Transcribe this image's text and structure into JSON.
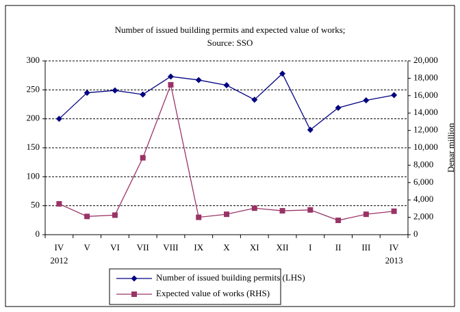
{
  "chart_data": {
    "type": "line",
    "title": "Number of issued building permits and expected value of works;",
    "subtitle": "Source: SSO",
    "categories": [
      "IV",
      "V",
      "VI",
      "VII",
      "VIII",
      "IX",
      "X",
      "XI",
      "XII",
      "I",
      "II",
      "III",
      "IV"
    ],
    "year_labels": [
      "2012",
      "2013"
    ],
    "y2_label": "Denar million",
    "ylim": [
      0,
      300
    ],
    "yticks": [
      0,
      50,
      100,
      150,
      200,
      250,
      300
    ],
    "y2lim": [
      0,
      20000
    ],
    "y2ticks": [
      0,
      {
        "value": 2000,
        "label": "2,000"
      },
      {
        "value": 4000,
        "label": "4,000"
      },
      {
        "value": 6000,
        "label": "6,000"
      },
      {
        "value": 8000,
        "label": "8,000"
      },
      {
        "value": 10000,
        "label": "10,000"
      },
      {
        "value": 12000,
        "label": "12,000"
      },
      {
        "value": 14000,
        "label": "14,000"
      },
      {
        "value": 16000,
        "label": "16,000"
      },
      {
        "value": 18000,
        "label": "18,000"
      },
      {
        "value": 20000,
        "label": "20,000"
      }
    ],
    "grid": true,
    "series": [
      {
        "name": "Number of issued building permits (LHS)",
        "color": "#000080",
        "marker": "diamond",
        "values": [
          200,
          245,
          249,
          242,
          273,
          267,
          258,
          233,
          278,
          181,
          219,
          232,
          241
        ]
      },
      {
        "name": "Expected value of works (RHS)",
        "color": "#993366",
        "marker": "square",
        "axis": "y2",
        "values": [
          3550,
          2100,
          2250,
          8850,
          17250,
          2000,
          2350,
          3050,
          2750,
          2850,
          1650,
          2350,
          2700
        ]
      }
    ]
  }
}
